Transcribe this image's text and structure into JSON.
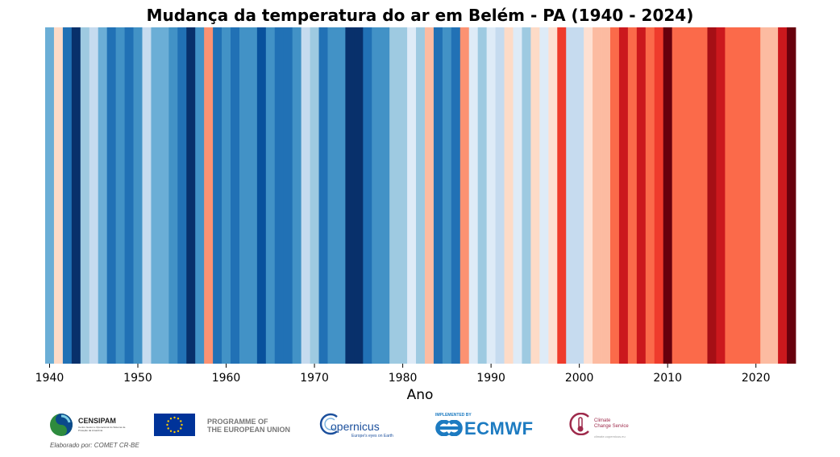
{
  "chart_data": {
    "type": "heatmap",
    "title": "Mudança da temperatura do ar em Belém - PA (1940 - 2024)",
    "xlabel": "Ano",
    "ylabel": "",
    "xlim": [
      1939.5,
      2024.5
    ],
    "x_ticks": [
      1940,
      1950,
      1960,
      1970,
      1980,
      1990,
      2000,
      2010,
      2020
    ],
    "grid": false,
    "legend": "none",
    "years": [
      1940,
      1941,
      1942,
      1943,
      1944,
      1945,
      1946,
      1947,
      1948,
      1949,
      1950,
      1951,
      1952,
      1953,
      1954,
      1955,
      1956,
      1957,
      1958,
      1959,
      1960,
      1961,
      1962,
      1963,
      1964,
      1965,
      1966,
      1967,
      1968,
      1969,
      1970,
      1971,
      1972,
      1973,
      1974,
      1975,
      1976,
      1977,
      1978,
      1979,
      1980,
      1981,
      1982,
      1983,
      1984,
      1985,
      1986,
      1987,
      1988,
      1989,
      1990,
      1991,
      1992,
      1993,
      1994,
      1995,
      1996,
      1997,
      1998,
      1999,
      2000,
      2001,
      2002,
      2003,
      2004,
      2005,
      2006,
      2007,
      2008,
      2009,
      2010,
      2011,
      2012,
      2013,
      2014,
      2015,
      2016,
      2017,
      2018,
      2019,
      2020,
      2021,
      2022,
      2023,
      2024
    ],
    "colors": [
      "#6baed6",
      "#fddbc7",
      "#2171b5",
      "#08306b",
      "#9ecae1",
      "#c6dbef",
      "#6baed6",
      "#2171b5",
      "#4292c6",
      "#2171b5",
      "#4292c6",
      "#c6dbef",
      "#6baed6",
      "#6baed6",
      "#4292c6",
      "#2171b5",
      "#08306b",
      "#4292c6",
      "#fc9272",
      "#2171b5",
      "#4292c6",
      "#2171b5",
      "#4292c6",
      "#4292c6",
      "#08519c",
      "#4292c6",
      "#2171b5",
      "#2171b5",
      "#4292c6",
      "#c6dbef",
      "#9ecae1",
      "#2171b5",
      "#4292c6",
      "#4292c6",
      "#08306b",
      "#08306b",
      "#2171b5",
      "#4292c6",
      "#4292c6",
      "#9ecae1",
      "#9ecae1",
      "#deebf7",
      "#9ecae1",
      "#fcbba1",
      "#2171b5",
      "#4292c6",
      "#2171b5",
      "#fc9272",
      "#deebf7",
      "#9ecae1",
      "#deebf7",
      "#c6dbef",
      "#fddbc7",
      "#deebf7",
      "#9ecae1",
      "#fddbc7",
      "#deebf7",
      "#fee0d2",
      "#ef3b2c",
      "#c6dbef",
      "#c6dbef",
      "#fee0d2",
      "#fcbba1",
      "#fcbba1",
      "#fb6a4a",
      "#cb181d",
      "#fb6a4a",
      "#cb181d",
      "#fb6a4a",
      "#ef3b2c",
      "#67000d",
      "#fb6a4a",
      "#fb6a4a",
      "#fb6a4a",
      "#fb6a4a",
      "#a50f15",
      "#cb181d",
      "#fb6a4a",
      "#fb6a4a",
      "#fb6a4a",
      "#fb6a4a",
      "#fcbba1",
      "#fcbba1",
      "#cb181d",
      "#67000d"
    ]
  },
  "logos": {
    "censipam_name": "CENSIPAM",
    "censipam_sub": "Centro Gestor e Operacional do Sistema de Proteção da Amazônia",
    "eu_line1": "PROGRAMME OF",
    "eu_line2": "THE EUROPEAN UNION",
    "copernicus_name": "opernicus",
    "copernicus_tag": "Europe's eyes on Earth",
    "ecmwf_implemented": "IMPLEMENTED BY",
    "ecmwf_name": "ECMWF",
    "c3s_line1": "Climate",
    "c3s_line2": "Change Service",
    "c3s_url": "climate.copernicus.eu"
  },
  "credit": "Elaborado por: COMET CR-BE",
  "colors": {
    "censipam_blue": "#0b4a8b",
    "censipam_green": "#2e8b3e",
    "eu_blue": "#003399",
    "eu_star": "#ffcc00",
    "eu_text": "#777777",
    "copernicus_blue": "#1b4f9c",
    "ecmwf_blue": "#1d7bc1",
    "c3s_red": "#9e2a4b"
  }
}
